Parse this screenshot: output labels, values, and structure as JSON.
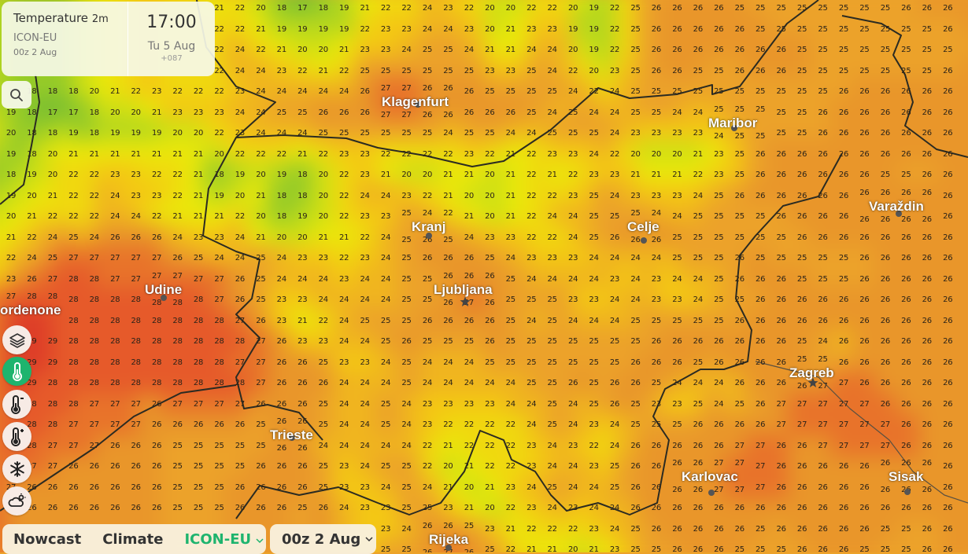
{
  "info_panel": {
    "title": "Temperature",
    "title_suffix": "2m",
    "model": "ICON-EU",
    "run": "00z 2 Aug",
    "time": "17:00",
    "date": "Tu 5 Aug",
    "offset": "+087"
  },
  "controls": {
    "search_icon": "search-icon",
    "buttons": [
      {
        "icon": "layers-icon"
      },
      {
        "icon": "thermometer-icon",
        "active": true
      },
      {
        "icon": "thermometer-minus-icon"
      },
      {
        "icon": "thermometer-plus-icon"
      },
      {
        "icon": "snowflake-icon"
      },
      {
        "icon": "cloud-sun-icon"
      }
    ],
    "accent": "#1eb46e"
  },
  "bottom_bar": {
    "nowcast": "Nowcast",
    "climate": "Climate",
    "model": "ICON-EU",
    "run": "00z 2 Aug"
  },
  "cities": [
    {
      "name": "Klagenfurt"
    },
    {
      "name": "Maribor"
    },
    {
      "name": "Varaždin"
    },
    {
      "name": "Kranj"
    },
    {
      "name": "Celje"
    },
    {
      "name": "Ljubljana",
      "capital": true
    },
    {
      "name": "Udine"
    },
    {
      "name": "ordenone"
    },
    {
      "name": "Trieste"
    },
    {
      "name": "Zagreb",
      "capital": true
    },
    {
      "name": "Karlovac"
    },
    {
      "name": "Sisak"
    },
    {
      "name": "Rijeka"
    }
  ],
  "temperature_grid": {
    "unit": "°C",
    "rows": [
      "- - - - - - - - - - 21 22 20 18 17 18 19 21 22 22 24 23 22 20 20 22 22 20 19 22 25 26 26 26 26 25 25 25 25 25 25 25 25 26 26 26",
      "- - - - - - - - - - 22 22 21 19 19 19 19 22 23 23 24 24 23 20 21 23 23 19 19 22 25 26 26 26 26 26 25 25 25 25 25 25 25 25 25 26",
      "- - - - - - - - - - 22 24 22 21 20 20 21 23 23 24 25 25 24 21 21 24 24 20 19 22 25 26 26 26 26 26 26 26 25 25 25 25 25 25 25 25",
      "- - - - - - - - - - 22 24 24 23 22 21 22 25 25 25 25 25 25 23 23 25 24 22 20 23 25 26 26 25 25 26 26 26 25 25 25 25 25 25 25 26",
      "- 18 18 18 20 21 22 23 22 22 22 23 24 24 24 24 24 26 27 27 26 26 26 25 25 25 25 24 22 24 25 25 25 25 25 25 25 25 25 25 26 26 26 26 26 26",
      "19 18 17 17 18 20 20 21 23 23 23 24 24 25 25 26 26 26 27 27 26 26 26 26 26 25 24 25 24 24 25 25 24 24 25 25 25 25 25 26 26 26 26 26 26 26",
      "20 18 18 19 18 19 19 19 20 20 22 23 24 24 24 25 25 25 25 25 25 24 25 25 24 24 25 25 25 24 23 23 23 23 24 25 25 25 25 26 26 26 26 26 26 26",
      "19 18 20 21 21 21 21 21 21 21 20 22 22 22 21 22 23 23 22 22 22 22 23 22 21 22 23 23 24 22 20 20 20 21 23 25 26 26 26 26 26 26 26 26 26 26",
      "18 19 20 22 22 23 23 22 22 21 18 19 20 19 18 20 22 23 21 20 20 21 21 20 21 22 21 22 23 23 21 21 21 22 23 25 26 26 26 26 26 26 25 25 26 26",
      "19 20 21 22 22 24 23 23 22 21 19 20 21 18 18 20 22 24 24 23 22 21 20 20 21 22 22 23 25 24 23 23 23 24 25 26 26 26 26 26 26 26 26 26 26 26",
      "20 21 22 22 22 24 24 22 21 21 21 22 20 18 19 20 22 23 23 25 24 22 21 20 21 22 24 24 25 25 25 24 24 25 25 25 25 26 26 26 26 26 26 26 26 26",
      "21 22 24 25 24 26 26 26 24 23 23 24 21 20 20 21 21 22 24 25 26 25 24 23 23 22 22 24 25 26 26 26 25 25 25 25 25 25 26 26 26 26 26 26 26 26",
      "22 24 25 27 27 27 27 27 26 25 24 24 25 24 23 23 22 23 24 25 26 26 26 25 24 23 23 23 24 24 24 24 25 25 25 26 25 25 25 25 25 26 26 26 26 26",
      "23 26 27 28 28 27 27 27 27 27 27 26 25 24 24 24 23 24 24 25 25 26 26 26 25 24 24 24 24 23 24 23 24 24 25 26 26 26 25 25 25 26 26 26 26 26",
      "27 28 28 28 28 28 28 28 28 28 27 26 25 23 23 24 24 24 24 25 25 26 27 26 25 25 25 23 23 24 24 23 23 24 25 25 26 26 26 26 26 26 26 26 26 26",
      "- - - 28 28 28 28 28 28 28 28 27 26 23 21 22 24 25 25 25 26 26 26 26 25 24 25 24 24 24 25 25 25 25 25 26 26 26 26 26 26 26 26 26 26 26",
      "- 29 29 28 28 28 28 28 28 28 28 28 27 26 23 23 24 24 25 26 25 25 25 26 25 25 25 25 25 25 25 26 26 26 26 26 26 26 25 24 26 26 26 26 26 26",
      "- 29 29 28 28 28 28 28 28 28 28 27 27 26 26 25 23 23 24 25 24 24 24 25 25 25 25 25 25 25 26 26 26 25 26 26 26 26 25 25 26 26 26 26 26 26",
      "- 29 28 28 28 28 28 28 28 28 28 28 27 26 26 26 24 24 24 25 24 24 24 24 24 25 25 26 25 26 26 25 24 24 24 26 26 26 26 27 27 26 26 26 26 26",
      "- 28 28 28 27 27 27 26 27 27 27 27 26 26 26 25 24 24 25 24 23 23 23 23 24 24 25 24 25 26 25 23 23 25 24 25 26 27 27 27 27 27 26 26 26 26",
      "- 28 28 27 27 27 27 26 26 26 26 26 25 26 26 25 24 24 25 24 23 22 22 22 22 24 25 24 23 24 25 25 25 26 26 26 26 27 27 27 27 27 27 26 26 26",
      "- 28 27 27 27 26 26 26 25 25 25 25 25 26 26 24 24 24 24 24 22 21 22 22 22 23 24 23 22 24 26 26 26 26 26 27 27 26 26 27 27 27 27 26 26 26",
      "- 27 27 26 26 26 26 26 25 25 25 25 26 26 26 25 23 24 25 25 22 20 21 22 22 23 24 24 23 25 26 26 26 26 27 27 27 26 26 26 26 26 26 26 26 26",
      "27 26 26 26 26 26 26 26 25 25 25 26 26 26 26 25 23 23 24 25 24 21 20 21 23 24 25 24 24 25 26 26 26 26 27 27 27 26 26 26 26 26 26 26 26 26",
      "- 26 26 26 26 26 26 26 25 25 25 26 26 26 25 26 24 23 23 25 25 23 21 20 22 23 24 23 24 24 26 26 26 26 26 26 26 26 26 26 26 26 26 26 26 26",
      "- - - - - - - - - - - - - - - - - - 23 24 26 26 25 23 21 22 22 22 23 24 25 26 26 26 26 26 25 26 26 26 26 26 25 25 26 26",
      "- - - - - - - - - - - - - - - - - - 25 25 26 27 26 25 22 21 21 20 21 23 25 25 26 26 26 25 25 25 26 26 26 25 25 25 26 26"
    ]
  }
}
